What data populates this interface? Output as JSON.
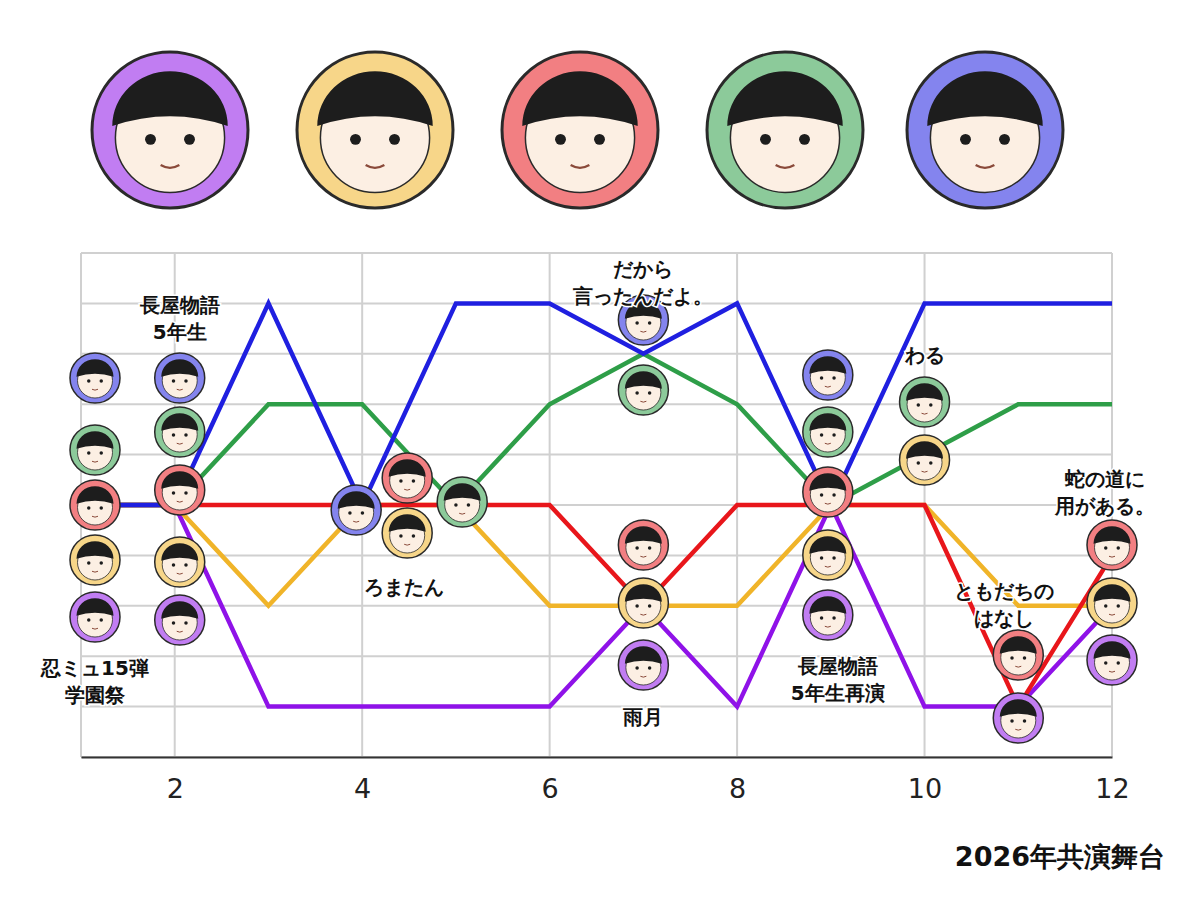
{
  "chart_data": {
    "type": "line",
    "x_label": "2026年共演舞台",
    "x": [
      1,
      2,
      3,
      4,
      5,
      6,
      7,
      8,
      9,
      10,
      11,
      12
    ],
    "xlim": [
      1,
      12
    ],
    "xticks": [
      2,
      4,
      6,
      8,
      10,
      12
    ],
    "ylim": [
      0,
      10
    ],
    "yticks": [
      0,
      1,
      2,
      3,
      4,
      5,
      6,
      7,
      8,
      9,
      10
    ],
    "grid": true,
    "tick_labels": "x",
    "series": [
      {
        "color": "#8f12e8",
        "values": [
          5,
          5,
          1,
          1,
          1,
          1,
          3,
          1,
          5,
          1,
          1,
          3
        ]
      },
      {
        "color": "#f0b429",
        "values": [
          5,
          5,
          3,
          5,
          5,
          3,
          3,
          3,
          5,
          5,
          3,
          3
        ]
      },
      {
        "color": "#e8161b",
        "values": [
          5,
          5,
          5,
          5,
          5,
          5,
          3,
          5,
          5,
          5,
          1,
          4
        ]
      },
      {
        "color": "#2e9e48",
        "values": [
          5,
          5,
          7,
          7,
          5,
          7,
          8,
          7,
          5,
          6,
          7,
          7
        ]
      },
      {
        "color": "#1f1fe0",
        "values": [
          5,
          5,
          9,
          5,
          9,
          9,
          8,
          9,
          5,
          9,
          9,
          9
        ]
      }
    ],
    "annotations": [
      {
        "text": [
          "忍ミュ15弾",
          "学園祭"
        ],
        "x": 1,
        "members": [
          4,
          3,
          2,
          1,
          0
        ]
      },
      {
        "text": [
          "長屋物語",
          "5年生"
        ],
        "x": 2,
        "members": [
          4,
          3,
          2,
          1,
          0
        ]
      },
      {
        "text": [
          "ろまたん"
        ],
        "x": 4,
        "members": [
          4,
          2,
          1,
          3
        ]
      },
      {
        "text": [
          "だから",
          "言ったんだよ。"
        ],
        "x": 7,
        "members": [
          4,
          3
        ]
      },
      {
        "text": [
          "雨月"
        ],
        "x": 7,
        "members": [
          2,
          1,
          0
        ]
      },
      {
        "text": [
          "長屋物語",
          "5年生再演"
        ],
        "x": 9,
        "members": [
          4,
          3,
          2,
          1,
          0
        ]
      },
      {
        "text": [
          "わる"
        ],
        "x": 10,
        "members": [
          3,
          1
        ]
      },
      {
        "text": [
          "ともだちの",
          "はなし"
        ],
        "x": 11,
        "members": [
          2,
          0
        ]
      },
      {
        "text": [
          "蛇の道に",
          "用がある。"
        ],
        "x": 12,
        "members": [
          2,
          1,
          0
        ]
      }
    ]
  }
}
